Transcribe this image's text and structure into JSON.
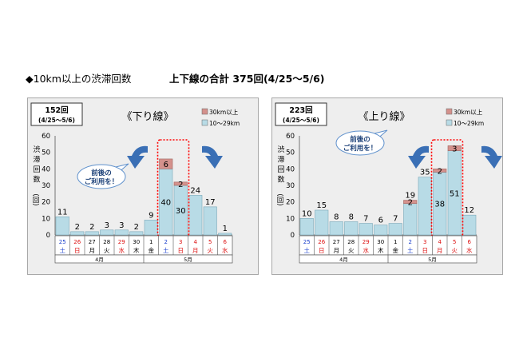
{
  "heading": {
    "title": "◆10km以上の渋滞回数",
    "summary": "上下線の合計 375回(4/25～5/6)"
  },
  "chart_data": [
    {
      "type": "bar",
      "title": "《下り線》",
      "total_label": "152回",
      "period_label": "(4/25～5/6)",
      "ylabel": [
        "渋",
        "滞",
        "回",
        "数",
        "(回)"
      ],
      "ylim": [
        0,
        60
      ],
      "yticks": [
        0,
        10,
        20,
        30,
        40,
        50,
        60
      ],
      "categories": [
        {
          "day": "25",
          "wd": "土",
          "kind": "sat"
        },
        {
          "day": "26",
          "wd": "日",
          "kind": "hol"
        },
        {
          "day": "27",
          "wd": "月",
          "kind": "wk"
        },
        {
          "day": "28",
          "wd": "火",
          "kind": "wk"
        },
        {
          "day": "29",
          "wd": "水",
          "kind": "hol"
        },
        {
          "day": "30",
          "wd": "木",
          "kind": "wk"
        },
        {
          "day": "1",
          "wd": "金",
          "kind": "wk"
        },
        {
          "day": "2",
          "wd": "土",
          "kind": "sat"
        },
        {
          "day": "3",
          "wd": "日",
          "kind": "hol"
        },
        {
          "day": "4",
          "wd": "月",
          "kind": "hol"
        },
        {
          "day": "5",
          "wd": "火",
          "kind": "hol"
        },
        {
          "day": "6",
          "wd": "水",
          "kind": "hol"
        }
      ],
      "months": [
        {
          "label": "4月",
          "from": 0,
          "to": 5
        },
        {
          "label": "5月",
          "from": 6,
          "to": 11
        }
      ],
      "series": [
        {
          "name": "10～29km",
          "values": [
            11,
            2,
            2,
            3,
            3,
            2,
            9,
            40,
            30,
            24,
            17,
            1
          ]
        },
        {
          "name": "30km以上",
          "values": [
            0,
            0,
            0,
            0,
            0,
            0,
            0,
            6,
            2,
            0,
            0,
            0
          ]
        }
      ],
      "value_labels": [
        "11",
        "2",
        "2",
        "3",
        "3",
        "2",
        "9",
        "40",
        "30",
        "24",
        "17",
        "1"
      ],
      "long_labels": {
        "7": "6",
        "8": "2"
      },
      "highlight": [
        7,
        8
      ],
      "note": "前後の\nご利用を！",
      "colors": {
        "short": "#b8dbe6",
        "long": "#d4918c",
        "highlight": "#ff0000"
      }
    },
    {
      "type": "bar",
      "title": "《上り線》",
      "total_label": "223回",
      "period_label": "(4/25～5/6)",
      "ylabel": [
        "渋",
        "滞",
        "回",
        "数",
        "(回)"
      ],
      "ylim": [
        0,
        60
      ],
      "yticks": [
        0,
        10,
        20,
        30,
        40,
        50,
        60
      ],
      "categories": [
        {
          "day": "25",
          "wd": "土",
          "kind": "sat"
        },
        {
          "day": "26",
          "wd": "日",
          "kind": "hol"
        },
        {
          "day": "27",
          "wd": "月",
          "kind": "wk"
        },
        {
          "day": "28",
          "wd": "火",
          "kind": "wk"
        },
        {
          "day": "29",
          "wd": "水",
          "kind": "hol"
        },
        {
          "day": "30",
          "wd": "木",
          "kind": "wk"
        },
        {
          "day": "1",
          "wd": "金",
          "kind": "wk"
        },
        {
          "day": "2",
          "wd": "土",
          "kind": "sat"
        },
        {
          "day": "3",
          "wd": "日",
          "kind": "hol"
        },
        {
          "day": "4",
          "wd": "月",
          "kind": "hol"
        },
        {
          "day": "5",
          "wd": "火",
          "kind": "hol"
        },
        {
          "day": "6",
          "wd": "水",
          "kind": "hol"
        }
      ],
      "months": [
        {
          "label": "4月",
          "from": 0,
          "to": 5
        },
        {
          "label": "5月",
          "from": 6,
          "to": 11
        }
      ],
      "series": [
        {
          "name": "10～29km",
          "values": [
            10,
            15,
            8,
            8,
            7,
            6,
            7,
            19,
            35,
            38,
            51,
            12
          ]
        },
        {
          "name": "30km以上",
          "values": [
            0,
            0,
            0,
            0,
            0,
            0,
            0,
            2,
            0,
            2,
            3,
            0
          ]
        }
      ],
      "value_labels": [
        "10",
        "15",
        "8",
        "8",
        "7",
        "6",
        "7",
        "19",
        "35",
        "38",
        "51",
        "12"
      ],
      "long_labels": {
        "7": "2",
        "9": "2",
        "10": "3"
      },
      "highlight": [
        9,
        10
      ],
      "note": "前後の\nご利用を！",
      "colors": {
        "short": "#b8dbe6",
        "long": "#d4918c",
        "highlight": "#ff0000"
      }
    }
  ]
}
